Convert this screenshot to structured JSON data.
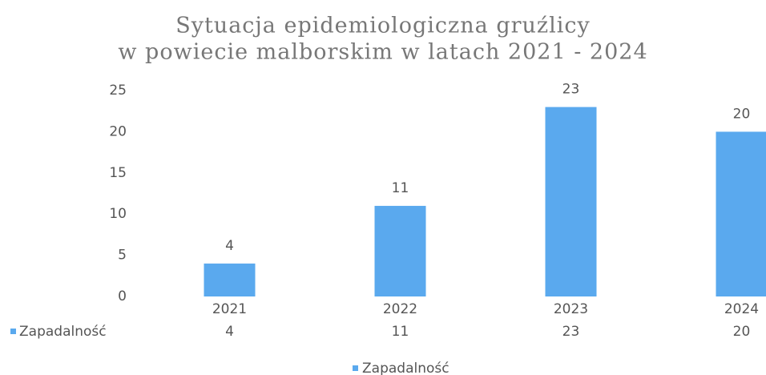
{
  "chart_data": {
    "type": "bar",
    "title": [
      "Sytuacja epidemiologiczna gruźlicy",
      "w powiecie malborskim w latach 2021 - 2024"
    ],
    "categories": [
      "2021",
      "2022",
      "2023",
      "2024"
    ],
    "series": [
      {
        "name": "Zapadalność",
        "color": "#5aa9ee",
        "values": [
          4,
          11,
          23,
          20
        ]
      }
    ],
    "ylim": [
      0,
      25
    ],
    "yticks": [
      0,
      5,
      10,
      15,
      20,
      25
    ],
    "grid": false,
    "legend": "bottom",
    "data_table": true
  }
}
